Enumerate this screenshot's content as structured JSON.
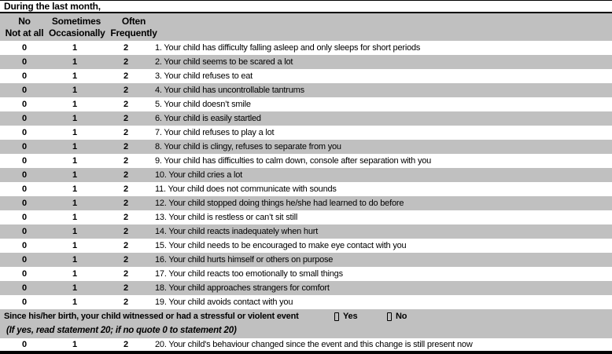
{
  "page": {
    "title": "During the last month,"
  },
  "colors": {
    "header_band": "#c0c0c0",
    "row_alt": "#c0c0c0",
    "border": "#000000",
    "background": "#ffffff",
    "text": "#000000"
  },
  "scale_header": {
    "col_no": {
      "line1": "No",
      "line2": "Not at all"
    },
    "col_sometimes": {
      "line1": "Sometimes",
      "line2": "Occasionally"
    },
    "col_often": {
      "line1": "Often",
      "line2": "Frequently"
    }
  },
  "scale_values": [
    "0",
    "1",
    "2"
  ],
  "statements": [
    {
      "id": 1,
      "text": "1. Your child has difficulty falling asleep and only sleeps for short periods"
    },
    {
      "id": 2,
      "text": "2. Your child seems to be scared a lot"
    },
    {
      "id": 3,
      "text": "3. Your child refuses to eat"
    },
    {
      "id": 4,
      "text": "4. Your child has uncontrollable tantrums"
    },
    {
      "id": 5,
      "text": "5. Your child doesn’t smile"
    },
    {
      "id": 6,
      "text": "6. Your child is easily startled"
    },
    {
      "id": 7,
      "text": "7. Your child refuses to play a lot"
    },
    {
      "id": 8,
      "text": "8. Your child is clingy, refuses to separate from you"
    },
    {
      "id": 9,
      "text": "9. Your child has difficulties to calm down, console after separation with you"
    },
    {
      "id": 10,
      "text": "10. Your child cries a lot"
    },
    {
      "id": 11,
      "text": "11. Your child does not communicate with sounds"
    },
    {
      "id": 12,
      "text": "12. Your child stopped doing things he/she had learned to do before"
    },
    {
      "id": 13,
      "text": "13. Your child is restless or can’t sit still"
    },
    {
      "id": 14,
      "text": "14. Your child reacts inadequately when hurt"
    },
    {
      "id": 15,
      "text": "15. Your child needs to be encouraged to make eye contact with you"
    },
    {
      "id": 16,
      "text": "16. Your child hurts himself or others on purpose"
    },
    {
      "id": 17,
      "text": "17. Your child reacts too emotionally to small things"
    },
    {
      "id": 18,
      "text": "18. Your child approaches strangers for comfort"
    },
    {
      "id": 19,
      "text": "19. Your child avoids contact with you"
    },
    {
      "id": 20,
      "text": "20. Your child's behaviour changed since the event and this change is still present now"
    }
  ],
  "event_section": {
    "question": "Since his/her birth, your child witnessed or had a stressful or violent event",
    "yes_label": "Yes",
    "no_label": "No",
    "instruction": "(If yes, read statement 20; if no quote 0 to statement 20)",
    "checkbox_icon": "empty-checkbox-icon"
  }
}
